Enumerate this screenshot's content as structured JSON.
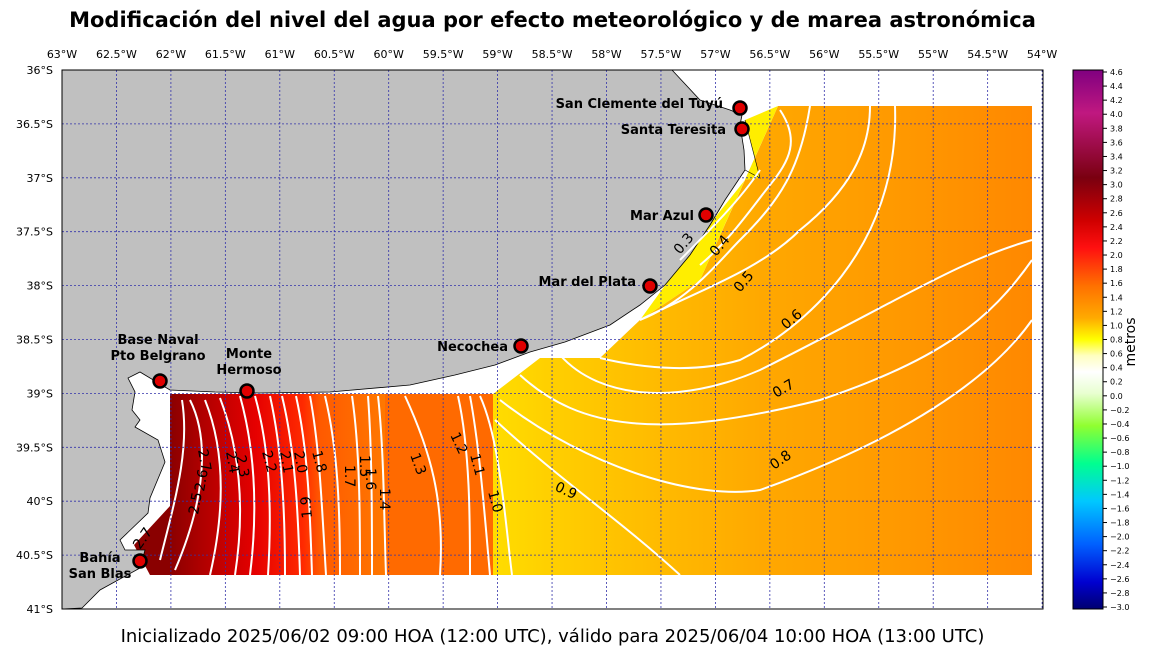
{
  "title": "Modificación del nivel del agua por efecto meteorológico y de marea astronómica",
  "footer": "Inicializado 2025/06/02 09:00 HOA (12:00 UTC), válido para 2025/06/04 10:00 HOA (13:00 UTC)",
  "map": {
    "lon_labels": [
      "63°W",
      "62.5°W",
      "62°W",
      "61.5°W",
      "61°W",
      "60.5°W",
      "60°W",
      "59.5°W",
      "59°W",
      "58.5°W",
      "58°W",
      "57.5°W",
      "57°W",
      "56.5°W",
      "56°W",
      "55.5°W",
      "55°W",
      "54.5°W",
      "54°W"
    ],
    "lat_labels": [
      "36°S",
      "36.5°S",
      "37°S",
      "37.5°S",
      "38°S",
      "38.5°S",
      "39°S",
      "39.5°S",
      "40°S",
      "40.5°S",
      "41°S"
    ],
    "colors": {
      "land": "#c0c0c0",
      "grid": "#3333aa",
      "station": "#e00000",
      "contour": "#ffffff"
    },
    "stations": [
      {
        "name": "San Clemente del Tuyú",
        "lon": -56.7,
        "lat": -36.35
      },
      {
        "name": "Santa Teresita",
        "lon": -56.68,
        "lat": -36.55
      },
      {
        "name": "Mar Azul",
        "lon": -57.0,
        "lat": -37.35
      },
      {
        "name": "Mar del Plata",
        "lon": -57.55,
        "lat": -38.0
      },
      {
        "name": "Necochea",
        "lon": -58.73,
        "lat": -38.57
      },
      {
        "name": "Monte Hermoso",
        "lon": -61.28,
        "lat": -38.98
      },
      {
        "name": "Base Naval Pto Belgrano",
        "lon": -62.09,
        "lat": -38.88
      },
      {
        "name": "Bahía San Blas",
        "lon": -62.28,
        "lat": -40.55
      }
    ],
    "contour_labels": [
      "0.3",
      "0.4",
      "0.5",
      "0.6",
      "0.7",
      "0.8",
      "0.9",
      "1.0",
      "1.1",
      "1.2",
      "1.3",
      "1.4",
      "1.5",
      "1.7",
      "1.6",
      "1.8",
      "1.9",
      "2.0",
      "2.1",
      "2.2",
      "2.3",
      "2.4",
      "2.5",
      "2.6",
      "2.7",
      "2.7"
    ]
  },
  "colorbar": {
    "unit": "metros",
    "ticks": [
      "4.6",
      "4.4",
      "4.2",
      "4.0",
      "3.8",
      "3.6",
      "3.4",
      "3.2",
      "3.0",
      "2.8",
      "2.6",
      "2.4",
      "2.2",
      "2.0",
      "1.8",
      "1.6",
      "1.4",
      "1.2",
      "1.0",
      "0.8",
      "0.6",
      "0.4",
      "0.2",
      "0.0",
      "−0.2",
      "−0.4",
      "−0.6",
      "−0.8",
      "−1.0",
      "−1.2",
      "−1.4",
      "−1.6",
      "−1.8",
      "−2.0",
      "−2.2",
      "−2.4",
      "−2.6",
      "−2.8",
      "−3.0"
    ]
  }
}
